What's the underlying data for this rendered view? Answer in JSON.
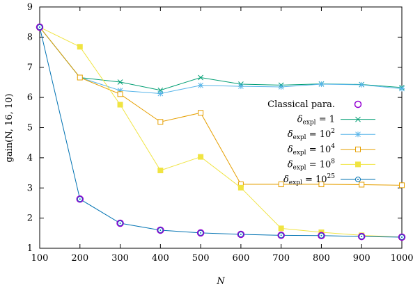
{
  "chart_data": {
    "type": "line",
    "xlabel": "N",
    "ylabel": "gain(N, 16, 10)",
    "xlim": [
      100,
      1000
    ],
    "ylim": [
      1,
      9
    ],
    "x_ticks": [
      100,
      200,
      300,
      400,
      500,
      600,
      700,
      800,
      900,
      1000
    ],
    "y_ticks": [
      1,
      2,
      3,
      4,
      5,
      6,
      7,
      8,
      9
    ],
    "legend_position": "center-right",
    "grid": false,
    "x": [
      100,
      200,
      300,
      400,
      500,
      600,
      700,
      800,
      900,
      1000
    ],
    "series": [
      {
        "name": "Classical para.",
        "style": "markers",
        "marker": "open-circle",
        "color": "#9400d3",
        "values": [
          8.33,
          2.63,
          1.83,
          1.6,
          1.51,
          1.46,
          1.43,
          1.42,
          1.39,
          1.37
        ]
      },
      {
        "name": "δexpl = 1",
        "label_base": "δ",
        "label_sub": "expl",
        "label_rest": " = 1",
        "label_sup": "",
        "style": "linespoints",
        "marker": "x",
        "color": "#009e73",
        "values": [
          8.33,
          6.66,
          6.51,
          6.24,
          6.66,
          6.44,
          6.41,
          6.45,
          6.43,
          6.33
        ]
      },
      {
        "name": "δexpl = 10^2",
        "label_base": "δ",
        "label_sub": "expl",
        "label_rest": " = 10",
        "label_sup": "2",
        "style": "linespoints",
        "marker": "star",
        "color": "#56b4e9",
        "values": [
          8.33,
          6.66,
          6.23,
          6.13,
          6.4,
          6.37,
          6.35,
          6.44,
          6.42,
          6.29
        ]
      },
      {
        "name": "δexpl = 10^4",
        "label_base": "δ",
        "label_sub": "expl",
        "label_rest": " = 10",
        "label_sup": "4",
        "style": "linespoints",
        "marker": "open-square",
        "color": "#e69f00",
        "values": [
          8.33,
          6.66,
          6.11,
          5.19,
          5.49,
          3.12,
          3.12,
          3.12,
          3.11,
          3.09
        ]
      },
      {
        "name": "δexpl = 10^8",
        "label_base": "δ",
        "label_sub": "expl",
        "label_rest": " = 10",
        "label_sup": "8",
        "style": "linespoints",
        "marker": "filled-square",
        "color": "#f0e442",
        "values": [
          8.33,
          7.68,
          5.76,
          3.58,
          4.03,
          3.01,
          1.66,
          1.53,
          1.43,
          1.37
        ]
      },
      {
        "name": "δexpl = 10^25",
        "label_base": "δ",
        "label_sub": "expl",
        "label_rest": " = 10",
        "label_sup": "25",
        "style": "linespoints",
        "marker": "circle-dot",
        "color": "#0072b2",
        "values": [
          8.33,
          2.63,
          1.83,
          1.6,
          1.51,
          1.46,
          1.43,
          1.42,
          1.39,
          1.37
        ]
      }
    ]
  }
}
